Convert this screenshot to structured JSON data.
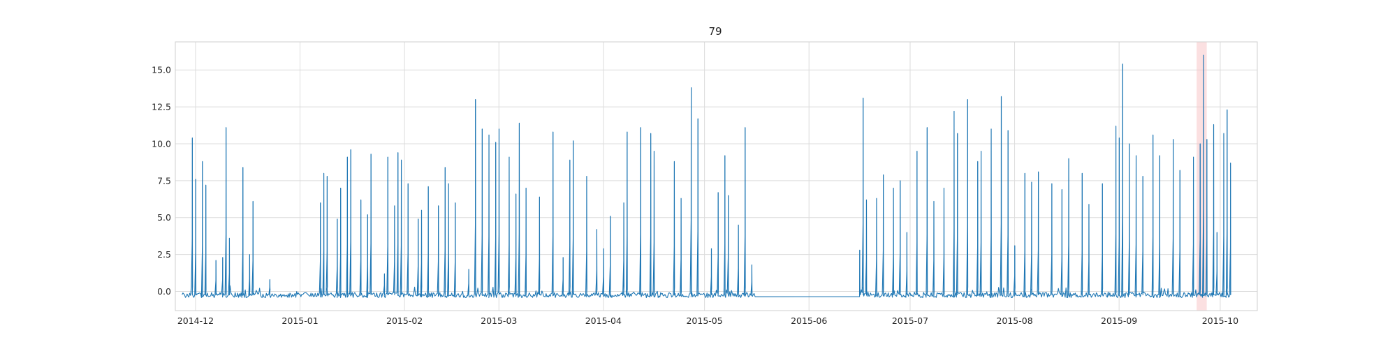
{
  "chart_data": {
    "type": "line",
    "title": "79",
    "xlabel": "",
    "ylabel": "",
    "x_range": [
      "2014-11-25",
      "2015-10-12"
    ],
    "x_tick_labels": [
      "2014-12",
      "2015-01",
      "2015-02",
      "2015-03",
      "2015-04",
      "2015-05",
      "2015-06",
      "2015-07",
      "2015-08",
      "2015-09",
      "2015-10"
    ],
    "ylim": [
      -1.3,
      16.9
    ],
    "y_ticks": [
      0.0,
      2.5,
      5.0,
      7.5,
      10.0,
      12.5,
      15.0
    ],
    "y_tick_labels": [
      "0.0",
      "2.5",
      "5.0",
      "7.5",
      "10.0",
      "12.5",
      "15.0"
    ],
    "grid": true,
    "series_color": "#1f77b4",
    "highlight_color": "#f7c6c9",
    "highlight_range": [
      "2015-09-24",
      "2015-09-27"
    ],
    "baseline": -0.25,
    "series": [
      {
        "segments": [
          {
            "start": "2014-11-27",
            "end": "2015-05-16",
            "spikes": [
              [
                "2014-11-30",
                10.4
              ],
              [
                "2014-12-01",
                7.6
              ],
              [
                "2014-12-03",
                8.8
              ],
              [
                "2014-12-04",
                7.2
              ],
              [
                "2014-12-07",
                2.1
              ],
              [
                "2014-12-09",
                2.3
              ],
              [
                "2014-12-10",
                11.1
              ],
              [
                "2014-12-11",
                3.6
              ],
              [
                "2014-12-15",
                8.4
              ],
              [
                "2014-12-17",
                2.5
              ],
              [
                "2014-12-18",
                6.1
              ],
              [
                "2014-12-23",
                0.8
              ],
              [
                "2015-01-07",
                6.0
              ],
              [
                "2015-01-08",
                8.0
              ],
              [
                "2015-01-09",
                7.8
              ],
              [
                "2015-01-12",
                4.9
              ],
              [
                "2015-01-13",
                7.0
              ],
              [
                "2015-01-15",
                9.1
              ],
              [
                "2015-01-16",
                9.6
              ],
              [
                "2015-01-19",
                6.2
              ],
              [
                "2015-01-21",
                5.2
              ],
              [
                "2015-01-22",
                9.3
              ],
              [
                "2015-01-26",
                1.2
              ],
              [
                "2015-01-27",
                9.1
              ],
              [
                "2015-01-29",
                5.8
              ],
              [
                "2015-01-30",
                9.4
              ],
              [
                "2015-01-31",
                8.9
              ],
              [
                "2015-02-02",
                7.3
              ],
              [
                "2015-02-05",
                4.9
              ],
              [
                "2015-02-06",
                5.5
              ],
              [
                "2015-02-08",
                7.1
              ],
              [
                "2015-02-11",
                5.8
              ],
              [
                "2015-02-13",
                8.4
              ],
              [
                "2015-02-14",
                7.3
              ],
              [
                "2015-02-16",
                6.0
              ],
              [
                "2015-02-20",
                1.5
              ],
              [
                "2015-02-22",
                13.0
              ],
              [
                "2015-02-24",
                11.0
              ],
              [
                "2015-02-26",
                10.6
              ],
              [
                "2015-02-28",
                10.1
              ],
              [
                "2015-03-01",
                11.0
              ],
              [
                "2015-03-04",
                9.1
              ],
              [
                "2015-03-06",
                6.6
              ],
              [
                "2015-03-07",
                11.4
              ],
              [
                "2015-03-09",
                7.0
              ],
              [
                "2015-03-13",
                6.4
              ],
              [
                "2015-03-17",
                10.8
              ],
              [
                "2015-03-20",
                2.3
              ],
              [
                "2015-03-22",
                8.9
              ],
              [
                "2015-03-23",
                10.2
              ],
              [
                "2015-03-27",
                7.8
              ],
              [
                "2015-03-30",
                4.2
              ],
              [
                "2015-04-01",
                2.9
              ],
              [
                "2015-04-03",
                5.1
              ],
              [
                "2015-04-07",
                6.0
              ],
              [
                "2015-04-08",
                10.8
              ],
              [
                "2015-04-12",
                11.1
              ],
              [
                "2015-04-15",
                10.7
              ],
              [
                "2015-04-16",
                9.5
              ],
              [
                "2015-04-22",
                8.8
              ],
              [
                "2015-04-24",
                6.3
              ],
              [
                "2015-04-27",
                13.8
              ],
              [
                "2015-04-29",
                11.7
              ],
              [
                "2015-05-03",
                2.9
              ],
              [
                "2015-05-05",
                6.7
              ],
              [
                "2015-05-07",
                9.2
              ],
              [
                "2015-05-08",
                6.5
              ],
              [
                "2015-05-11",
                4.5
              ],
              [
                "2015-05-13",
                11.1
              ],
              [
                "2015-05-15",
                1.8
              ]
            ]
          },
          {
            "start": "2015-06-16",
            "end": "2015-10-04",
            "spikes": [
              [
                "2015-06-16",
                2.8
              ],
              [
                "2015-06-17",
                13.1
              ],
              [
                "2015-06-18",
                6.2
              ],
              [
                "2015-06-21",
                6.3
              ],
              [
                "2015-06-23",
                7.9
              ],
              [
                "2015-06-26",
                7.0
              ],
              [
                "2015-06-28",
                7.5
              ],
              [
                "2015-06-30",
                4.0
              ],
              [
                "2015-07-03",
                9.5
              ],
              [
                "2015-07-06",
                11.1
              ],
              [
                "2015-07-08",
                6.1
              ],
              [
                "2015-07-11",
                7.0
              ],
              [
                "2015-07-14",
                12.2
              ],
              [
                "2015-07-15",
                10.7
              ],
              [
                "2015-07-18",
                13.0
              ],
              [
                "2015-07-21",
                8.8
              ],
              [
                "2015-07-22",
                9.5
              ],
              [
                "2015-07-25",
                11.0
              ],
              [
                "2015-07-28",
                13.2
              ],
              [
                "2015-07-30",
                10.9
              ],
              [
                "2015-08-01",
                3.1
              ],
              [
                "2015-08-04",
                8.0
              ],
              [
                "2015-08-06",
                7.4
              ],
              [
                "2015-08-08",
                8.1
              ],
              [
                "2015-08-12",
                7.3
              ],
              [
                "2015-08-15",
                6.9
              ],
              [
                "2015-08-17",
                9.0
              ],
              [
                "2015-08-21",
                8.0
              ],
              [
                "2015-08-23",
                5.9
              ],
              [
                "2015-08-27",
                7.3
              ],
              [
                "2015-08-31",
                11.2
              ],
              [
                "2015-09-01",
                10.4
              ],
              [
                "2015-09-02",
                15.4
              ],
              [
                "2015-09-04",
                10.0
              ],
              [
                "2015-09-06",
                9.2
              ],
              [
                "2015-09-08",
                7.8
              ],
              [
                "2015-09-11",
                10.6
              ],
              [
                "2015-09-13",
                9.2
              ],
              [
                "2015-09-17",
                10.3
              ],
              [
                "2015-09-19",
                8.2
              ],
              [
                "2015-09-23",
                9.1
              ],
              [
                "2015-09-25",
                10.0
              ],
              [
                "2015-09-26",
                16.0
              ],
              [
                "2015-09-27",
                10.3
              ],
              [
                "2015-09-29",
                11.3
              ],
              [
                "2015-09-30",
                4.0
              ],
              [
                "2015-10-02",
                10.7
              ],
              [
                "2015-10-03",
                12.3
              ],
              [
                "2015-10-04",
                8.7
              ]
            ]
          }
        ]
      }
    ]
  }
}
